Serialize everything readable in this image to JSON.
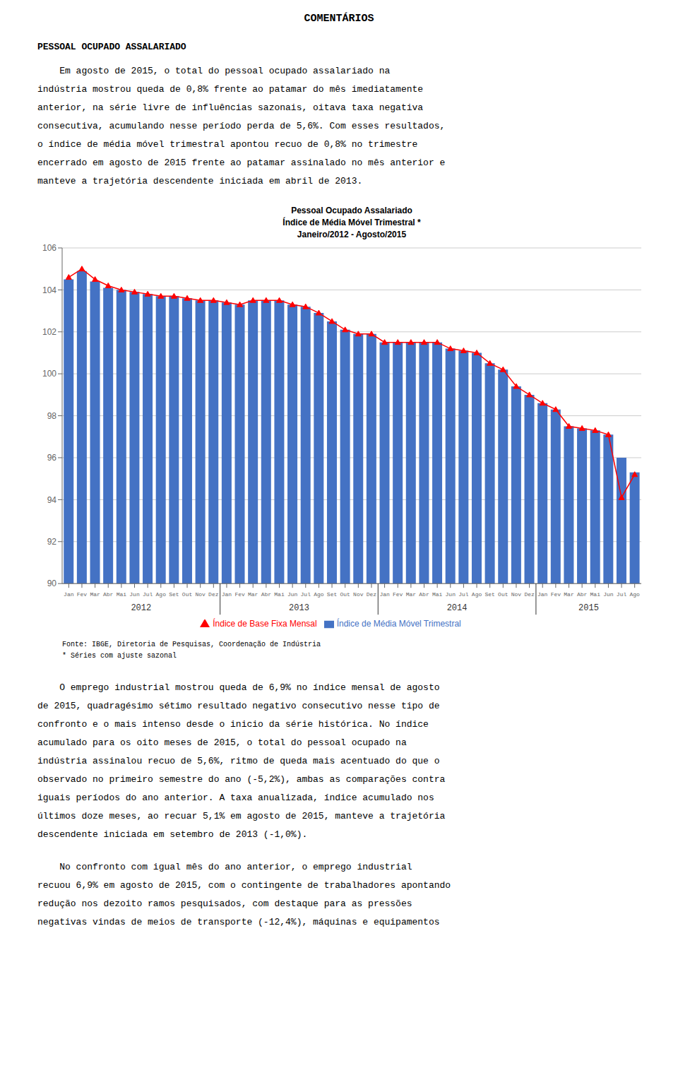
{
  "page_title": "COMENTÁRIOS",
  "section_title": "PESSOAL OCUPADO ASSALARIADO",
  "paragraphs": [
    [
      "    Em agosto de 2015, o total do pessoal ocupado assalariado na",
      "indústria mostrou queda de 0,8% frente ao patamar do mês imediatamente",
      "anterior, na série livre de influências sazonais, oitava taxa negativa",
      "consecutiva, acumulando nesse período perda de 5,6%. Com esses resultados,",
      "o índice de média móvel trimestral apontou recuo de 0,8% no trimestre",
      "encerrado em agosto de 2015 frente ao patamar assinalado no mês anterior e",
      "manteve a trajetória descendente iniciada em abril de 2013."
    ],
    [
      "    O emprego industrial mostrou queda de 6,9% no índice mensal de agosto",
      "de 2015, quadragésimo sétimo resultado negativo consecutivo nesse tipo de",
      "confronto e o mais intenso desde o inicio da série histórica. No índice",
      "acumulado para os oito meses de 2015, o total do pessoal ocupado na",
      "indústria assinalou recuo de 5,6%, ritmo de queda mais acentuado do que o",
      "observado no primeiro semestre do ano (-5,2%), ambas as comparações contra",
      "iguais períodos do ano anterior. A taxa anualizada, índice acumulado nos",
      "últimos doze meses, ao recuar 5,1% em agosto de 2015, manteve a trajetória",
      "descendente iniciada em setembro de 2013 (-1,0%)."
    ],
    [
      "    No confronto com igual mês do ano anterior, o emprego industrial",
      "recuou 6,9% em agosto de 2015, com o contingente de trabalhadores apontando",
      "redução nos dezoito ramos pesquisados, com destaque para as pressões",
      "negativas vindas de meios de transporte (-12,4%), máquinas e equipamentos"
    ]
  ],
  "chart_data": {
    "type": "bar",
    "title": "Pessoal Ocupado Assalariado",
    "subtitle": [
      "Índice de Média Móvel Trimestral *",
      "Janeiro/2012 - Agosto/2015"
    ],
    "categories": [
      "Jan",
      "Fev",
      "Mar",
      "Abr",
      "Mai",
      "Jun",
      "Jul",
      "Ago",
      "Set",
      "Out",
      "Nov",
      "Dez",
      "Jan",
      "Fev",
      "Mar",
      "Abr",
      "Mai",
      "Jun",
      "Jul",
      "Ago",
      "Set",
      "Out",
      "Nov",
      "Dez",
      "Jan",
      "Fev",
      "Mar",
      "Abr",
      "Mai",
      "Jun",
      "Jul",
      "Ago",
      "Set",
      "Out",
      "Nov",
      "Dez",
      "Jan",
      "Fev",
      "Mar",
      "Abr",
      "Mai",
      "Jun",
      "Jul",
      "Ago"
    ],
    "x_groups": [
      {
        "label": "2012",
        "count": 12
      },
      {
        "label": "2013",
        "count": 12
      },
      {
        "label": "2014",
        "count": 12
      },
      {
        "label": "2015",
        "count": 8
      }
    ],
    "series": [
      {
        "name": "Índice de Média Móvel Trimestral",
        "type": "bar",
        "color": "#4472C4",
        "values": [
          104.5,
          104.9,
          104.4,
          104.1,
          104.0,
          103.9,
          103.8,
          103.7,
          103.7,
          103.6,
          103.5,
          103.5,
          103.4,
          103.3,
          103.5,
          103.5,
          103.5,
          103.3,
          103.2,
          102.9,
          102.5,
          102.1,
          101.9,
          101.9,
          101.5,
          101.5,
          101.5,
          101.5,
          101.5,
          101.2,
          101.1,
          101.0,
          100.5,
          100.2,
          99.4,
          99.0,
          98.6,
          98.3,
          97.5,
          97.4,
          97.3,
          97.1,
          96.0,
          95.3
        ]
      },
      {
        "name": "Índice de Base Fixa Mensal",
        "type": "line",
        "color": "#FF0000",
        "marker": "triangle",
        "values": [
          104.6,
          105.0,
          104.5,
          104.2,
          104.0,
          103.9,
          103.8,
          103.7,
          103.7,
          103.6,
          103.5,
          103.5,
          103.4,
          103.3,
          103.5,
          103.5,
          103.5,
          103.3,
          103.2,
          102.9,
          102.5,
          102.1,
          101.9,
          101.9,
          101.5,
          101.5,
          101.5,
          101.5,
          101.5,
          101.2,
          101.1,
          101.0,
          100.5,
          100.2,
          99.4,
          99.0,
          98.6,
          98.3,
          97.5,
          97.4,
          97.3,
          97.1,
          94.1,
          95.2
        ]
      }
    ],
    "ylim": [
      90,
      106
    ],
    "yticks": [
      90,
      92,
      94,
      96,
      98,
      100,
      102,
      104,
      106
    ],
    "grid": true,
    "legend": "bottom",
    "notes": [
      "Fonte: IBGE, Diretoria de Pesquisas, Coordenação de Indústria",
      "* Séries com ajuste sazonal"
    ]
  }
}
